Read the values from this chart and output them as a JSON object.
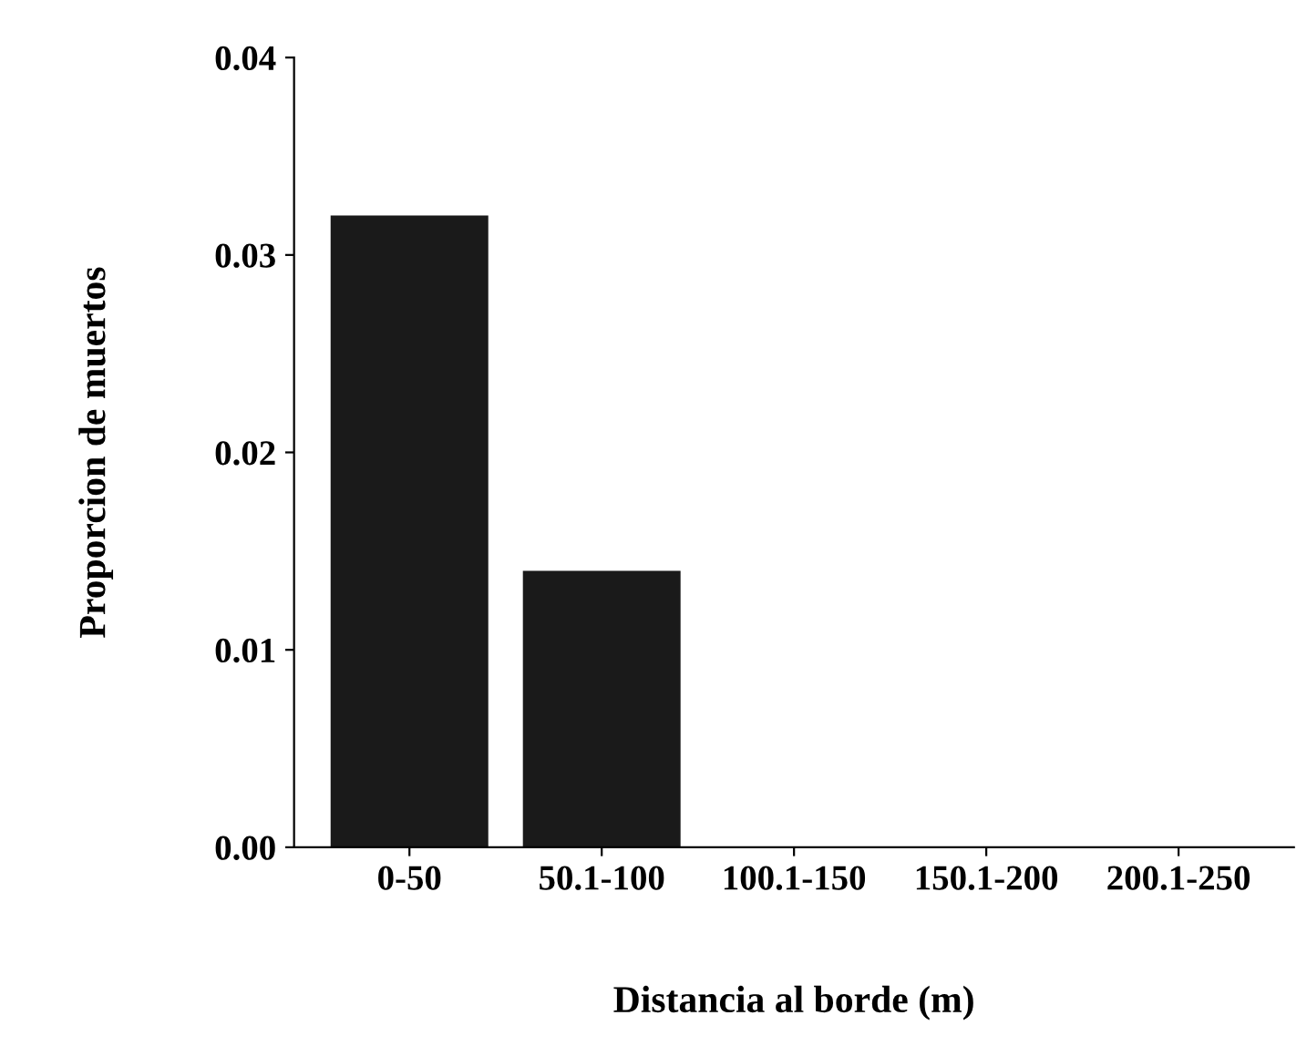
{
  "chart_data": {
    "type": "bar",
    "xlabel": "Distancia al borde (m)",
    "ylabel": "Proporcion de muertos",
    "categories": [
      "0-50",
      "50.1-100",
      "100.1-150",
      "150.1-200",
      "200.1-250"
    ],
    "values": [
      0.032,
      0.014,
      0,
      0,
      0
    ],
    "color": "#1a1a1a",
    "ylim": [
      0,
      0.04
    ],
    "yticks": [
      {
        "value": 0,
        "label": "0.00"
      },
      {
        "value": 0.01,
        "label": "0.01"
      },
      {
        "value": 0.02,
        "label": "0.02"
      },
      {
        "value": 0.03,
        "label": "0.03"
      },
      {
        "value": 0.04,
        "label": "0.04"
      }
    ],
    "grid": false
  }
}
